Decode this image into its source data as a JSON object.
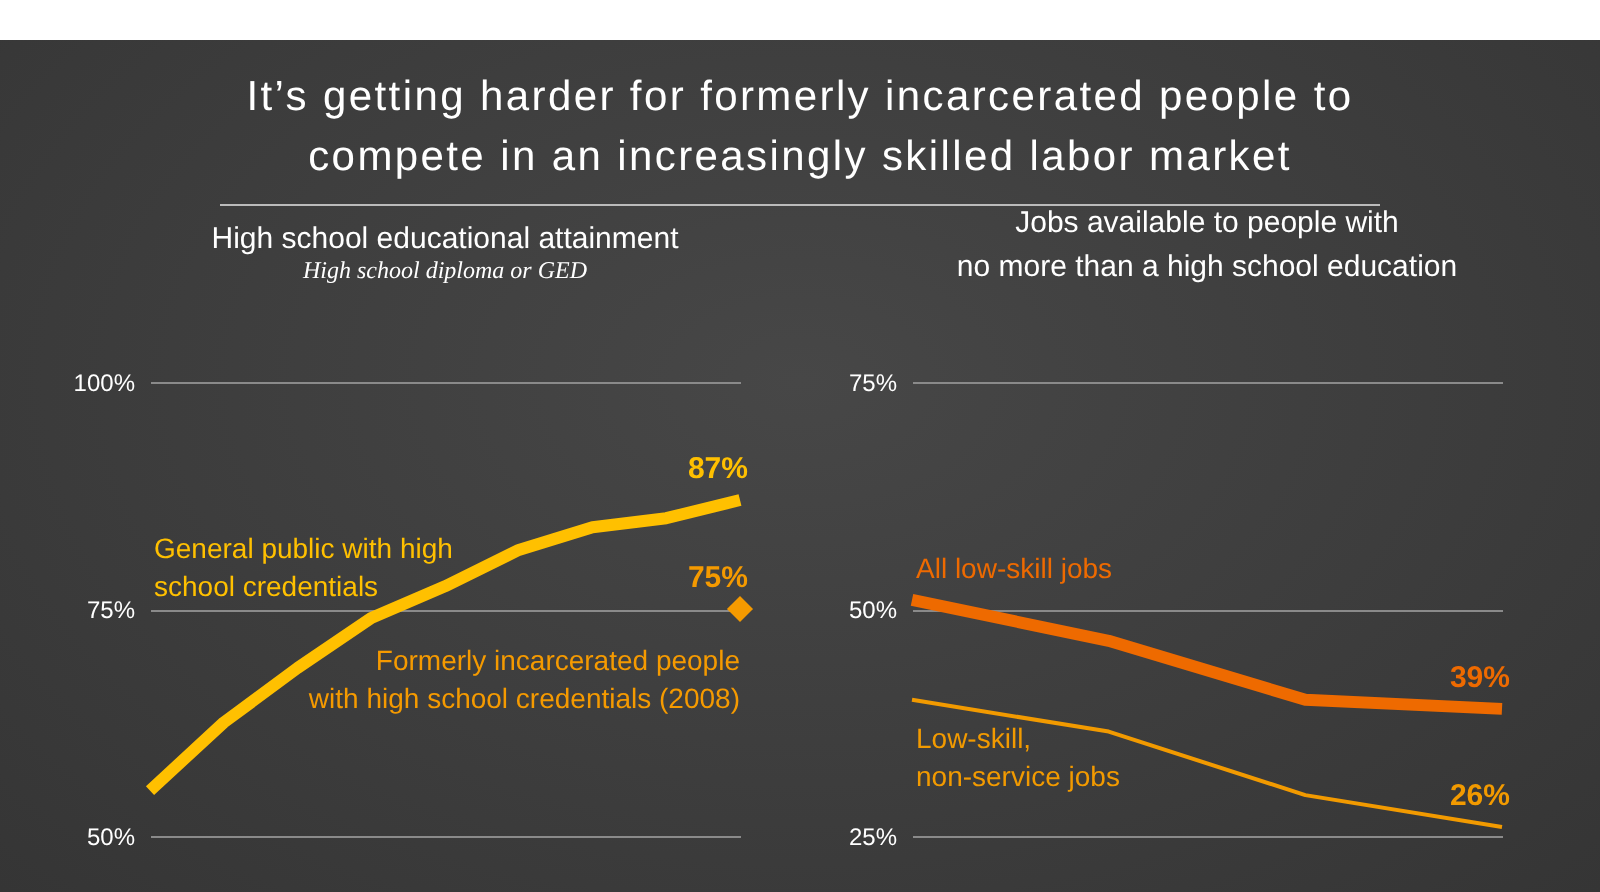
{
  "chart_data": [
    {
      "type": "line",
      "title": "High school educational attainment",
      "subtitle": "High school diploma or GED",
      "annotations": [
        "It’s getting harder for formerly incarcerated people to compete in an increasingly skilled labor market"
      ],
      "categories": [
        null,
        null,
        null,
        null,
        null,
        null,
        null,
        null,
        null
      ],
      "ylim": [
        50,
        100
      ],
      "yticks": [
        {
          "value": 50,
          "label": "50%"
        },
        {
          "value": 75,
          "label": "75%"
        },
        {
          "value": 100,
          "label": "100%"
        }
      ],
      "grid": "y",
      "tick_labels": "y",
      "series": [
        {
          "name": "General public with high school credentials",
          "color": "#ffc000",
          "values": [
            55,
            62.5,
            68.5,
            74,
            77.5,
            81.5,
            84,
            85,
            87
          ],
          "value_labels": [
            null,
            null,
            null,
            null,
            null,
            null,
            null,
            null,
            "87%"
          ]
        },
        {
          "name": "Formerly incarcerated people with high school credentials (2008)",
          "type": "scatter",
          "marker": "diamond",
          "color": "#f59a00",
          "values": [
            null,
            null,
            null,
            null,
            null,
            null,
            null,
            null,
            75
          ],
          "value_labels": [
            null,
            null,
            null,
            null,
            null,
            null,
            null,
            null,
            "75%"
          ]
        }
      ]
    },
    {
      "type": "line",
      "title": "Jobs available to people with no more than a high school education",
      "categories": [
        null,
        null,
        null,
        null
      ],
      "ylim": [
        25,
        75
      ],
      "yticks": [
        {
          "value": 25,
          "label": "25%"
        },
        {
          "value": 50,
          "label": "50%"
        },
        {
          "value": 75,
          "label": "75%"
        }
      ],
      "grid": "y",
      "tick_labels": "y",
      "series": [
        {
          "name": "All low-skill jobs",
          "color": "#ee6a00",
          "values": [
            51,
            46.5,
            40,
            39
          ],
          "value_labels": [
            null,
            null,
            null,
            "39%"
          ]
        },
        {
          "name": "Low-skill, non-service jobs",
          "color": "#f29a00",
          "values": [
            40,
            36.5,
            29.5,
            26
          ],
          "value_labels": [
            null,
            null,
            null,
            "26%"
          ]
        }
      ]
    }
  ]
}
